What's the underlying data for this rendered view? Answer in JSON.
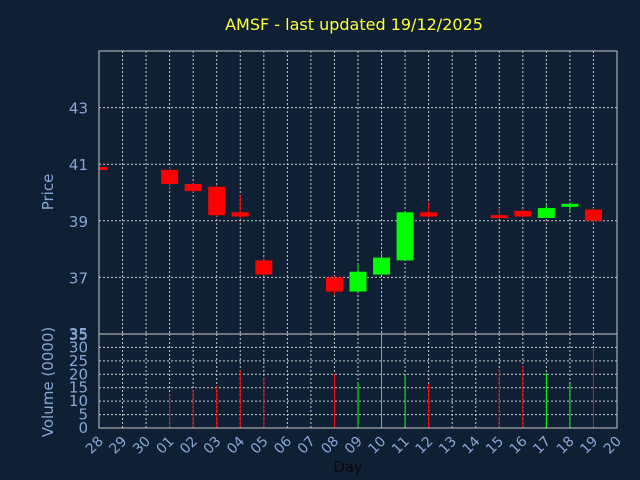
{
  "chart_data": {
    "type": "candlestick",
    "title": "AMSF - last updated 19/12/2025",
    "colors": {
      "up": "#00ff00",
      "down": "#ff0000",
      "background": "#0f2035",
      "plot_background": "#0f2035",
      "grid": "#c8c8c8",
      "axis_text": "#8aa6d6",
      "title": "#ffff33"
    },
    "x": {
      "label": "Day",
      "tick_labels": [
        "28",
        "29",
        "30",
        "01",
        "02",
        "03",
        "04",
        "05",
        "06",
        "07",
        "08",
        "09",
        "10",
        "11",
        "12",
        "13",
        "14",
        "15",
        "16",
        "17",
        "18",
        "19",
        "20"
      ]
    },
    "price": {
      "ylabel": "Price",
      "ticks": [
        "35",
        "37",
        "39",
        "41",
        "43"
      ],
      "ylim": [
        35,
        45
      ],
      "grid": true
    },
    "volume": {
      "ylabel": "Volume (0000)",
      "ticks": [
        "0",
        "5",
        "10",
        "15",
        "20",
        "25",
        "30",
        "35"
      ],
      "ylim": [
        0,
        35
      ],
      "grid": true
    },
    "candles": [
      {
        "day": "28",
        "open": 40.9,
        "high": 40.95,
        "low": 40.7,
        "close": 40.8,
        "volume": null
      },
      {
        "day": "01",
        "open": 40.8,
        "high": 40.9,
        "low": 40.1,
        "close": 40.3,
        "volume": 12.5
      },
      {
        "day": "02",
        "open": 40.3,
        "high": 40.35,
        "low": 40.0,
        "close": 40.05,
        "volume": 14
      },
      {
        "day": "03",
        "open": 40.2,
        "high": 40.25,
        "low": 39.15,
        "close": 39.2,
        "volume": 15.5
      },
      {
        "day": "04",
        "open": 39.3,
        "high": 39.9,
        "low": 39.1,
        "close": 39.15,
        "volume": 21.5
      },
      {
        "day": "05",
        "open": 37.6,
        "high": 37.7,
        "low": 37.05,
        "close": 37.1,
        "volume": 18.5
      },
      {
        "day": "08",
        "open": 37.0,
        "high": 37.05,
        "low": 36.4,
        "close": 36.5,
        "volume": 20
      },
      {
        "day": "09",
        "open": 36.5,
        "high": 37.5,
        "low": 36.5,
        "close": 37.2,
        "volume": 17
      },
      {
        "day": "10",
        "open": 37.1,
        "high": 37.85,
        "low": 37.1,
        "close": 37.7,
        "volume": 35
      },
      {
        "day": "11",
        "open": 37.6,
        "high": 39.35,
        "low": 37.6,
        "close": 39.3,
        "volume": 20
      },
      {
        "day": "12",
        "open": 39.3,
        "high": 39.65,
        "low": 39.1,
        "close": 39.15,
        "volume": 16.5
      },
      {
        "day": "15",
        "open": 39.2,
        "high": 39.45,
        "low": 39.1,
        "close": 39.15,
        "volume": 22
      },
      {
        "day": "16",
        "open": 39.35,
        "high": 39.4,
        "low": 39.1,
        "close": 39.15,
        "volume": 23
      },
      {
        "day": "17",
        "open": 39.1,
        "high": 39.55,
        "low": 39.1,
        "close": 39.45,
        "volume": 20.5
      },
      {
        "day": "18",
        "open": 39.5,
        "high": 39.65,
        "low": 39.35,
        "close": 39.6,
        "volume": 16.5
      },
      {
        "day": "19",
        "open": 39.4,
        "high": 39.45,
        "low": 38.95,
        "close": 39.0,
        "volume": 30
      }
    ]
  }
}
